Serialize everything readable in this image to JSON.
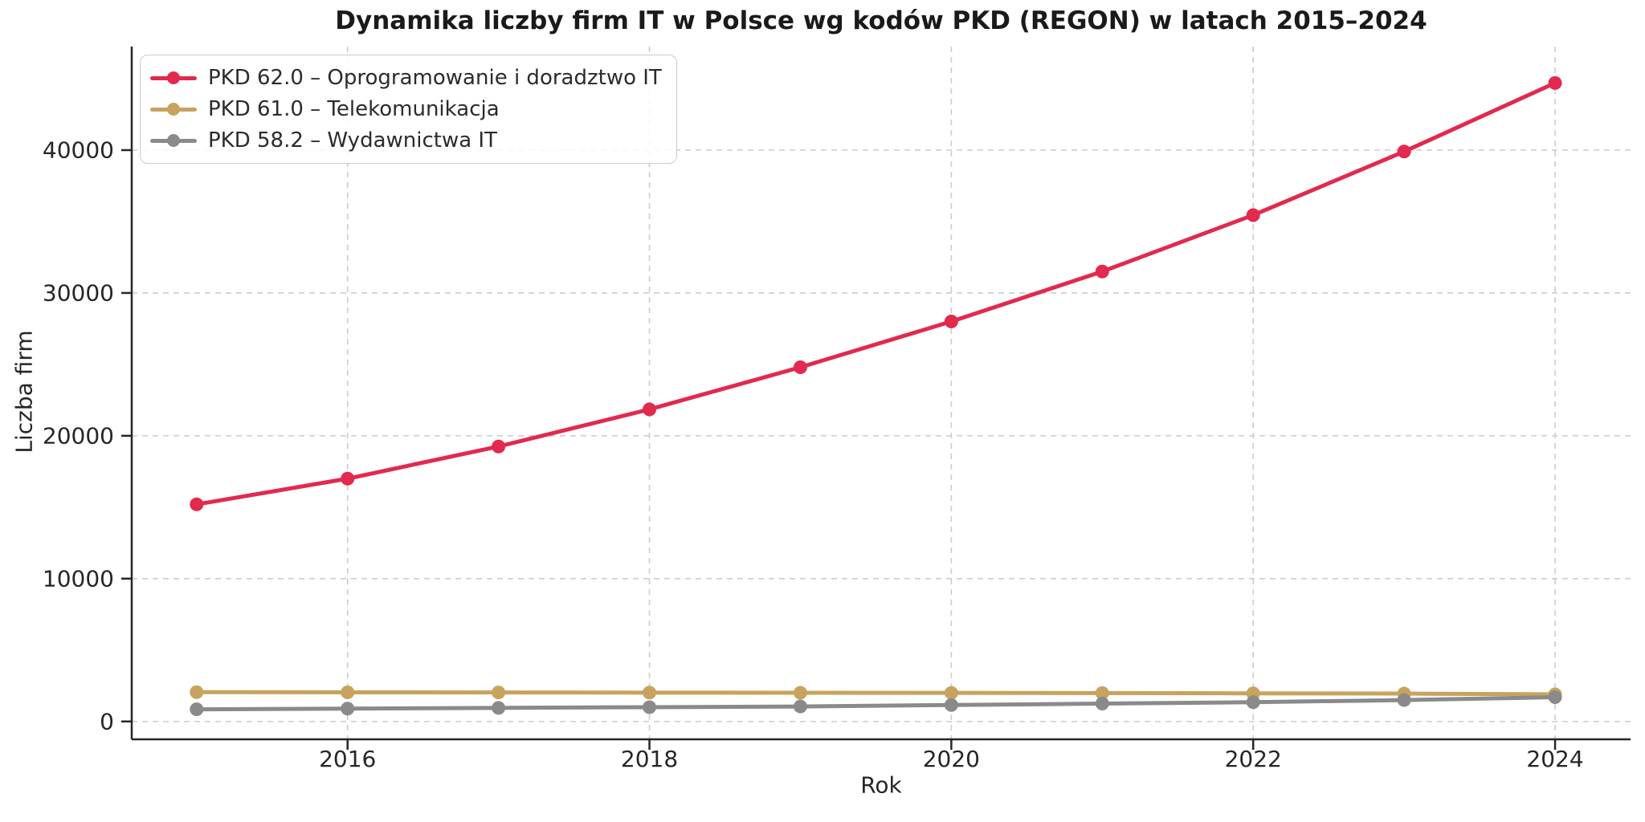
{
  "chart_data": {
    "type": "line",
    "title": "Dynamika liczby firm IT w Polsce wg kodów PKD (REGON) w latach 2015–2024",
    "xlabel": "Rok",
    "ylabel": "Liczba firm",
    "x": [
      2015,
      2016,
      2017,
      2018,
      2019,
      2020,
      2021,
      2022,
      2023,
      2024
    ],
    "xticks": [
      2016,
      2018,
      2020,
      2022,
      2024
    ],
    "yticks": [
      0,
      10000,
      20000,
      30000,
      40000
    ],
    "xlim": [
      2014.57,
      2024.5
    ],
    "ylim": [
      -1250,
      47250
    ],
    "grid": true,
    "legend_position": "upper left",
    "series": [
      {
        "name": "PKD 62.0 – Oprogramowanie i doradztwo IT",
        "color": "#e2294e",
        "values": [
          15200,
          17000,
          19250,
          21850,
          24800,
          28000,
          31500,
          35450,
          39900,
          44700
        ]
      },
      {
        "name": "PKD 61.0 – Telekomunikacja",
        "color": "#c8a35e",
        "values": [
          2050,
          2040,
          2030,
          2020,
          2010,
          2000,
          1990,
          1970,
          1950,
          1900
        ]
      },
      {
        "name": "PKD 58.2 – Wydawnictwa IT",
        "color": "#8a8a8a",
        "values": [
          850,
          900,
          950,
          1000,
          1050,
          1150,
          1250,
          1350,
          1500,
          1700
        ]
      }
    ]
  }
}
